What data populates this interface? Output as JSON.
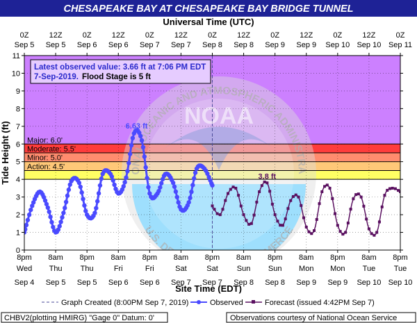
{
  "colors": {
    "title_bar": "#1e2296",
    "above_major": "#cc80ff",
    "major_band": "#ff3c3c",
    "moderate_band": "#ff8c6e",
    "minor_band": "#ffc878",
    "action_band": "#ffff64",
    "observed": "#4a4aff",
    "forecast": "#5a1060",
    "infobox_text": "#2a2acc"
  },
  "chart_data": {
    "type": "line",
    "title": "CHESAPEAKE BAY AT CHESAPEAKE BAY BRIDGE TUNNEL",
    "top_axis_title": "Universal Time (UTC)",
    "xlabel": "Site Time (EDT)",
    "ylabel": "Tide Height (ft)",
    "ylim": [
      0,
      11
    ],
    "y_ticks": [
      0,
      1,
      2,
      3,
      4,
      5,
      6,
      7,
      8,
      9,
      10,
      11
    ],
    "xlim_hours_since": "Sep 4 8pm EDT",
    "x_ticks_bottom": [
      {
        "line1": "8pm",
        "line2": "Wed",
        "line3": "Sep 4"
      },
      {
        "line1": "8am",
        "line2": "Thu",
        "line3": "Sep 5"
      },
      {
        "line1": "8pm",
        "line2": "Thu",
        "line3": "Sep 5"
      },
      {
        "line1": "8am",
        "line2": "Fri",
        "line3": "Sep 6"
      },
      {
        "line1": "8pm",
        "line2": "Fri",
        "line3": "Sep 6"
      },
      {
        "line1": "8am",
        "line2": "Sat",
        "line3": "Sep 7"
      },
      {
        "line1": "8pm",
        "line2": "Sat",
        "line3": "Sep 7"
      },
      {
        "line1": "8am",
        "line2": "Sun",
        "line3": "Sep 8"
      },
      {
        "line1": "8pm",
        "line2": "Sun",
        "line3": "Sep 8"
      },
      {
        "line1": "8am",
        "line2": "Mon",
        "line3": "Sep 9"
      },
      {
        "line1": "8pm",
        "line2": "Mon",
        "line3": "Sep 9"
      },
      {
        "line1": "8am",
        "line2": "Tue",
        "line3": "Sep 10"
      },
      {
        "line1": "8pm",
        "line2": "Tue",
        "line3": "Sep 10"
      }
    ],
    "x_ticks_top": [
      {
        "line1": "0Z",
        "line2": "Sep 5"
      },
      {
        "line1": "12Z",
        "line2": "Sep 5"
      },
      {
        "line1": "0Z",
        "line2": "Sep 6"
      },
      {
        "line1": "12Z",
        "line2": "Sep 6"
      },
      {
        "line1": "0Z",
        "line2": "Sep 7"
      },
      {
        "line1": "12Z",
        "line2": "Sep 7"
      },
      {
        "line1": "0Z",
        "line2": "Sep 8"
      },
      {
        "line1": "12Z",
        "line2": "Sep 8"
      },
      {
        "line1": "0Z",
        "line2": "Sep 9"
      },
      {
        "line1": "12Z",
        "line2": "Sep 9"
      },
      {
        "line1": "0Z",
        "line2": "Sep 10"
      },
      {
        "line1": "12Z",
        "line2": "Sep 10"
      },
      {
        "line1": "0Z",
        "line2": "Sep 11"
      }
    ],
    "flood_categories": [
      {
        "label": "Major: 6.0'",
        "min": 6.0,
        "max": 11,
        "color_key": "above_major"
      },
      {
        "label": "Moderate: 5.5'",
        "min": 5.5,
        "max": 6.0,
        "color_key": "major_band"
      },
      {
        "label": "Minor: 5.0'",
        "min": 5.0,
        "max": 5.5,
        "color_key": "moderate_band"
      },
      {
        "label": "Action: 4.5'",
        "min": 4.5,
        "max": 5.0,
        "color_key": "minor_band"
      },
      {
        "label": "",
        "min": 4.0,
        "max": 4.5,
        "color_key": "action_band"
      }
    ],
    "graph_created_hour": 72,
    "series": [
      {
        "name": "Observed",
        "x_hours": [
          0,
          3,
          6,
          9,
          12,
          15,
          18,
          21,
          24,
          27,
          30,
          33,
          36,
          39,
          42,
          45,
          48,
          51,
          54,
          57,
          60,
          63,
          66,
          69,
          72
        ],
        "values": [
          1.0,
          2.5,
          3.3,
          2.4,
          1.0,
          2.1,
          3.9,
          3.8,
          2.0,
          2.1,
          4.3,
          4.3,
          3.2,
          4.1,
          6.6,
          6.2,
          3.2,
          3.2,
          4.3,
          3.8,
          2.3,
          2.7,
          4.6,
          4.6,
          3.66
        ]
      },
      {
        "name": "Forecast",
        "x_hours": [
          72,
          75,
          78,
          81,
          84,
          87,
          90,
          93,
          96,
          99,
          102,
          105,
          108,
          111,
          114,
          117,
          120,
          123,
          126,
          129,
          132,
          135,
          138,
          141,
          144
        ],
        "values": [
          2.5,
          2.0,
          3.2,
          3.5,
          2.0,
          1.5,
          3.3,
          3.8,
          2.0,
          1.4,
          2.8,
          3.0,
          1.3,
          1.1,
          3.3,
          3.5,
          1.4,
          1.0,
          2.9,
          3.0,
          1.2,
          1.0,
          3.1,
          3.5,
          3.3
        ]
      }
    ],
    "annotations": [
      {
        "text": "6.63 ft",
        "x_hour": 43,
        "y": 6.63
      },
      {
        "text": "3.8 ft",
        "x_hour": 93,
        "y": 3.8
      }
    ],
    "info_box": {
      "line1": "Latest observed value: 3.66 ft at 7:06 PM EDT",
      "line2_bold": "7-Sep-2019.",
      "line2_rest": "Flood Stage is 5 ft"
    },
    "watermark": {
      "logo_text": "NOAA",
      "ring_top": "NATIONAL OCEANIC AND ATMOSPHERIC ADMINISTRATION",
      "ring_bottom": "U.S. DEPARTMENT OF COMMERCE"
    },
    "legend": {
      "graph_created": "Graph Created (8:00PM Sep 7, 2019)",
      "observed": "Observed",
      "forecast": "Forecast (issued 4:42PM Sep 7)"
    },
    "footer": {
      "left": "CHBV2(plotting HMIRG) \"Gage 0\" Datum: 0'",
      "right": "Observations courtesy of National Ocean Service"
    }
  }
}
